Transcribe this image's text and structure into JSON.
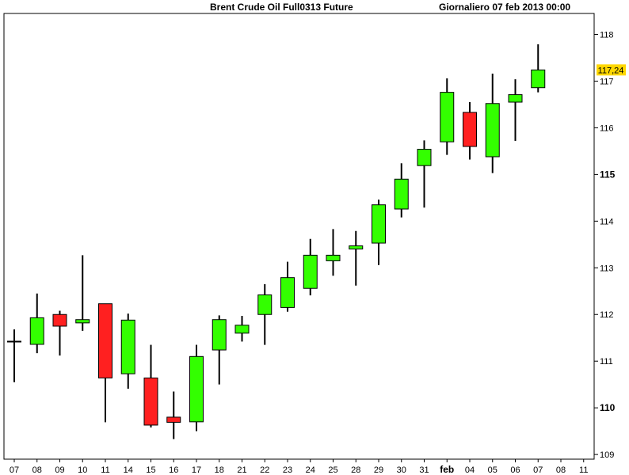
{
  "header": {
    "title": "Brent Crude Oil Full0313 Future",
    "period": "Giornaliero  07 feb 2013 00:00"
  },
  "chart_data": {
    "type": "candlestick",
    "title": "Brent Crude Oil Full0313 Future",
    "ylim": [
      108.9,
      118.45
    ],
    "y_ticks": [
      "109",
      "110",
      "111",
      "112",
      "113",
      "114",
      "115",
      "116",
      "117",
      "118"
    ],
    "y_bold_ticks": [
      "110",
      "115"
    ],
    "x_labels": [
      "07",
      "08",
      "09",
      "10",
      "11",
      "14",
      "15",
      "16",
      "17",
      "18",
      "21",
      "22",
      "23",
      "24",
      "25",
      "28",
      "29",
      "30",
      "31",
      "feb",
      "04",
      "05",
      "06",
      "07",
      "08",
      "11"
    ],
    "x_bold_labels": [
      "feb"
    ],
    "last_price_label": "117,24",
    "last_price": 117.24,
    "colors": {
      "up": "#33ff00",
      "down": "#ff2020",
      "last_price_bg": "#ffd700",
      "text": "#000000"
    },
    "candles": [
      {
        "label": "07",
        "open": 111.42,
        "high": 111.68,
        "low": 110.55,
        "close": 111.42
      },
      {
        "label": "08",
        "open": 111.36,
        "high": 112.45,
        "low": 111.17,
        "close": 111.93
      },
      {
        "label": "09",
        "open": 112.0,
        "high": 112.08,
        "low": 111.12,
        "close": 111.75
      },
      {
        "label": "10",
        "open": 111.82,
        "high": 113.27,
        "low": 111.65,
        "close": 111.89
      },
      {
        "label": "11",
        "open": 112.23,
        "high": 112.23,
        "low": 109.69,
        "close": 110.64
      },
      {
        "label": "14",
        "open": 110.73,
        "high": 112.02,
        "low": 110.41,
        "close": 111.88
      },
      {
        "label": "15",
        "open": 110.64,
        "high": 111.35,
        "low": 109.58,
        "close": 109.63
      },
      {
        "label": "16",
        "open": 109.8,
        "high": 110.35,
        "low": 109.33,
        "close": 109.69
      },
      {
        "label": "17",
        "open": 109.7,
        "high": 111.35,
        "low": 109.5,
        "close": 111.1
      },
      {
        "label": "18",
        "open": 111.24,
        "high": 111.98,
        "low": 110.5,
        "close": 111.89
      },
      {
        "label": "21",
        "open": 111.6,
        "high": 111.97,
        "low": 111.42,
        "close": 111.77
      },
      {
        "label": "22",
        "open": 112.0,
        "high": 112.65,
        "low": 111.35,
        "close": 112.42
      },
      {
        "label": "23",
        "open": 112.15,
        "high": 113.13,
        "low": 112.06,
        "close": 112.79
      },
      {
        "label": "24",
        "open": 112.56,
        "high": 113.62,
        "low": 112.41,
        "close": 113.27
      },
      {
        "label": "25",
        "open": 113.15,
        "high": 113.83,
        "low": 112.83,
        "close": 113.27
      },
      {
        "label": "28",
        "open": 113.42,
        "high": 113.79,
        "low": 112.62,
        "close": 113.47
      },
      {
        "label": "29",
        "open": 113.53,
        "high": 114.46,
        "low": 113.06,
        "close": 114.35
      },
      {
        "label": "30",
        "open": 114.26,
        "high": 115.24,
        "low": 114.08,
        "close": 114.9
      },
      {
        "label": "31",
        "open": 115.19,
        "high": 115.73,
        "low": 114.29,
        "close": 115.54
      },
      {
        "label": "feb",
        "open": 115.7,
        "high": 117.06,
        "low": 115.42,
        "close": 116.76
      },
      {
        "label": "04",
        "open": 116.33,
        "high": 116.55,
        "low": 115.32,
        "close": 115.6
      },
      {
        "label": "05",
        "open": 115.38,
        "high": 117.16,
        "low": 115.03,
        "close": 116.52
      },
      {
        "label": "06",
        "open": 116.55,
        "high": 117.04,
        "low": 115.72,
        "close": 116.71
      },
      {
        "label": "07",
        "open": 116.86,
        "high": 117.79,
        "low": 116.76,
        "close": 117.24
      }
    ]
  }
}
